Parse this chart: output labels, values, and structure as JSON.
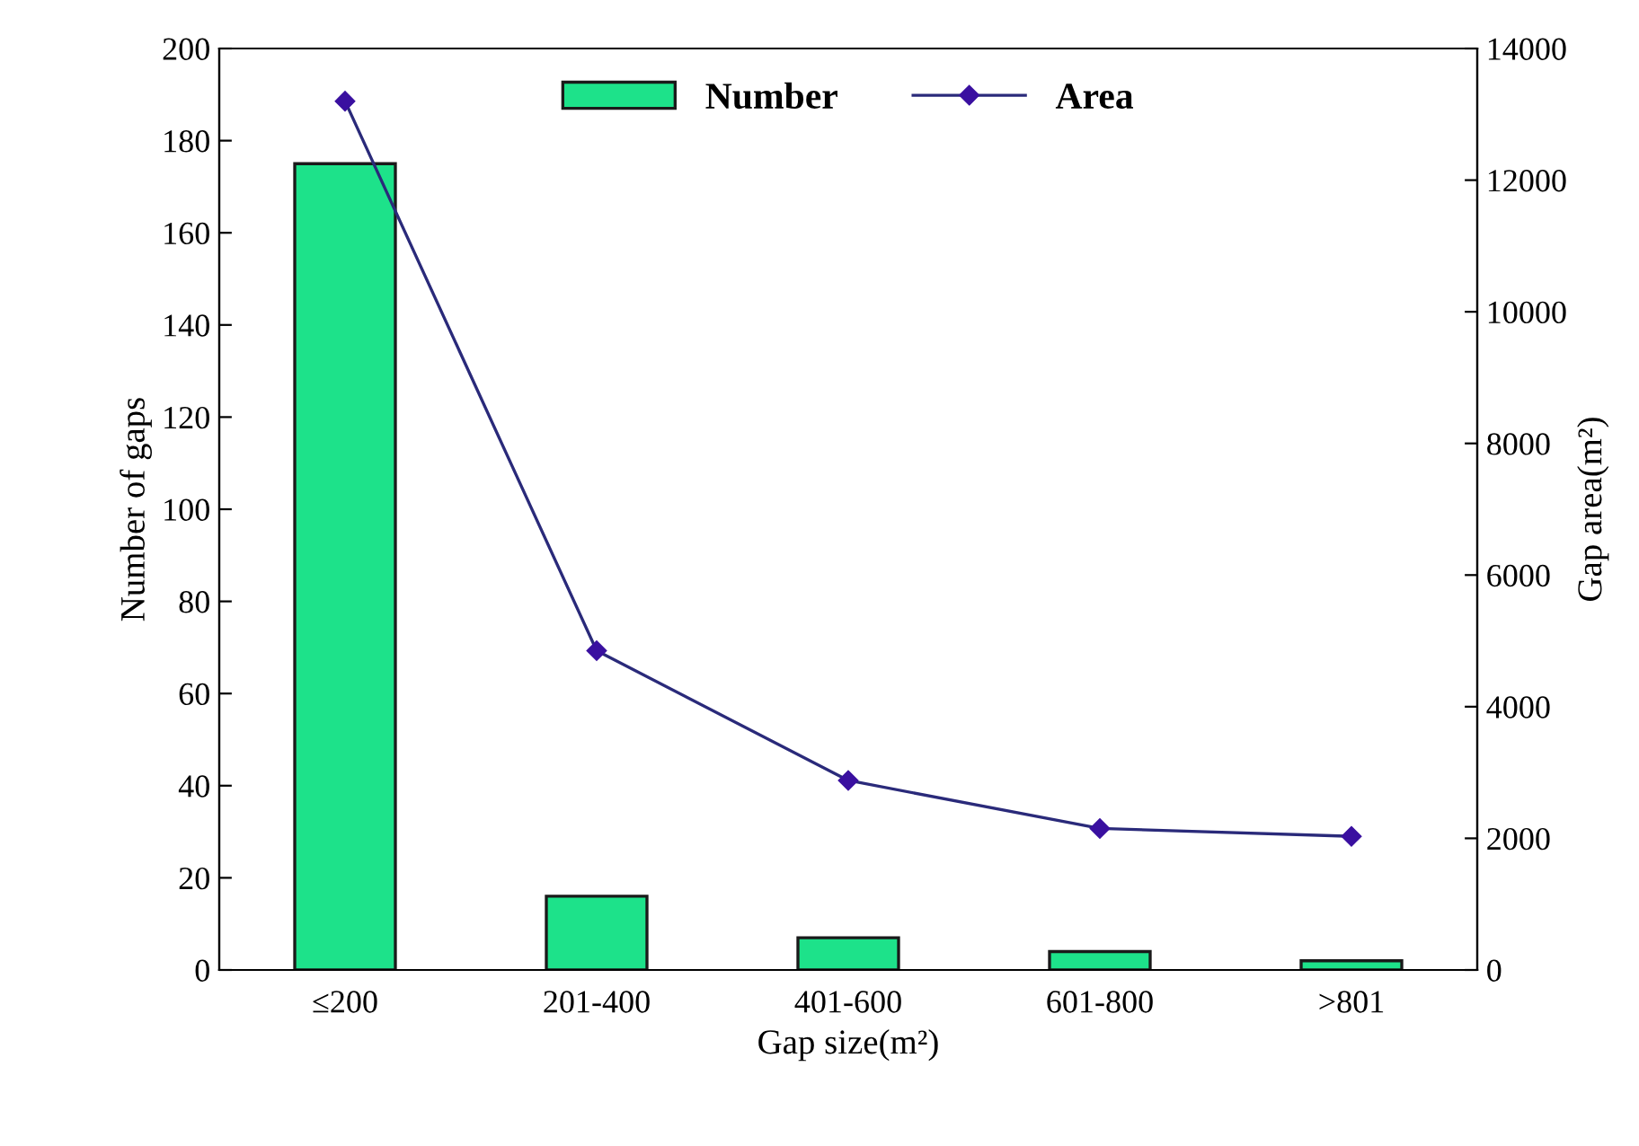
{
  "chart_data": {
    "type": "bar",
    "categories": [
      "≤200",
      "201-400",
      "401-600",
      "601-800",
      ">801"
    ],
    "xlabel": "Gap size(m²)",
    "ylabel": "Number of gaps",
    "y2label": "Gap area(m²)",
    "series": [
      {
        "name": "Number",
        "color": "#1de28a",
        "values": [
          175,
          16,
          7,
          4,
          2
        ]
      },
      {
        "name": "Area",
        "type": "line",
        "axis": "y2",
        "color": "#2a2a7a",
        "marker": "diamond",
        "values": [
          13200,
          4850,
          2880,
          2150,
          2030
        ]
      }
    ],
    "ylim": [
      0,
      200
    ],
    "yticks": [
      0,
      20,
      40,
      60,
      80,
      100,
      120,
      140,
      160,
      180,
      200
    ],
    "y2lim": [
      0,
      14000
    ],
    "y2ticks": [
      0,
      2000,
      4000,
      6000,
      8000,
      10000,
      12000,
      14000
    ],
    "legend": "top",
    "grid": false
  }
}
